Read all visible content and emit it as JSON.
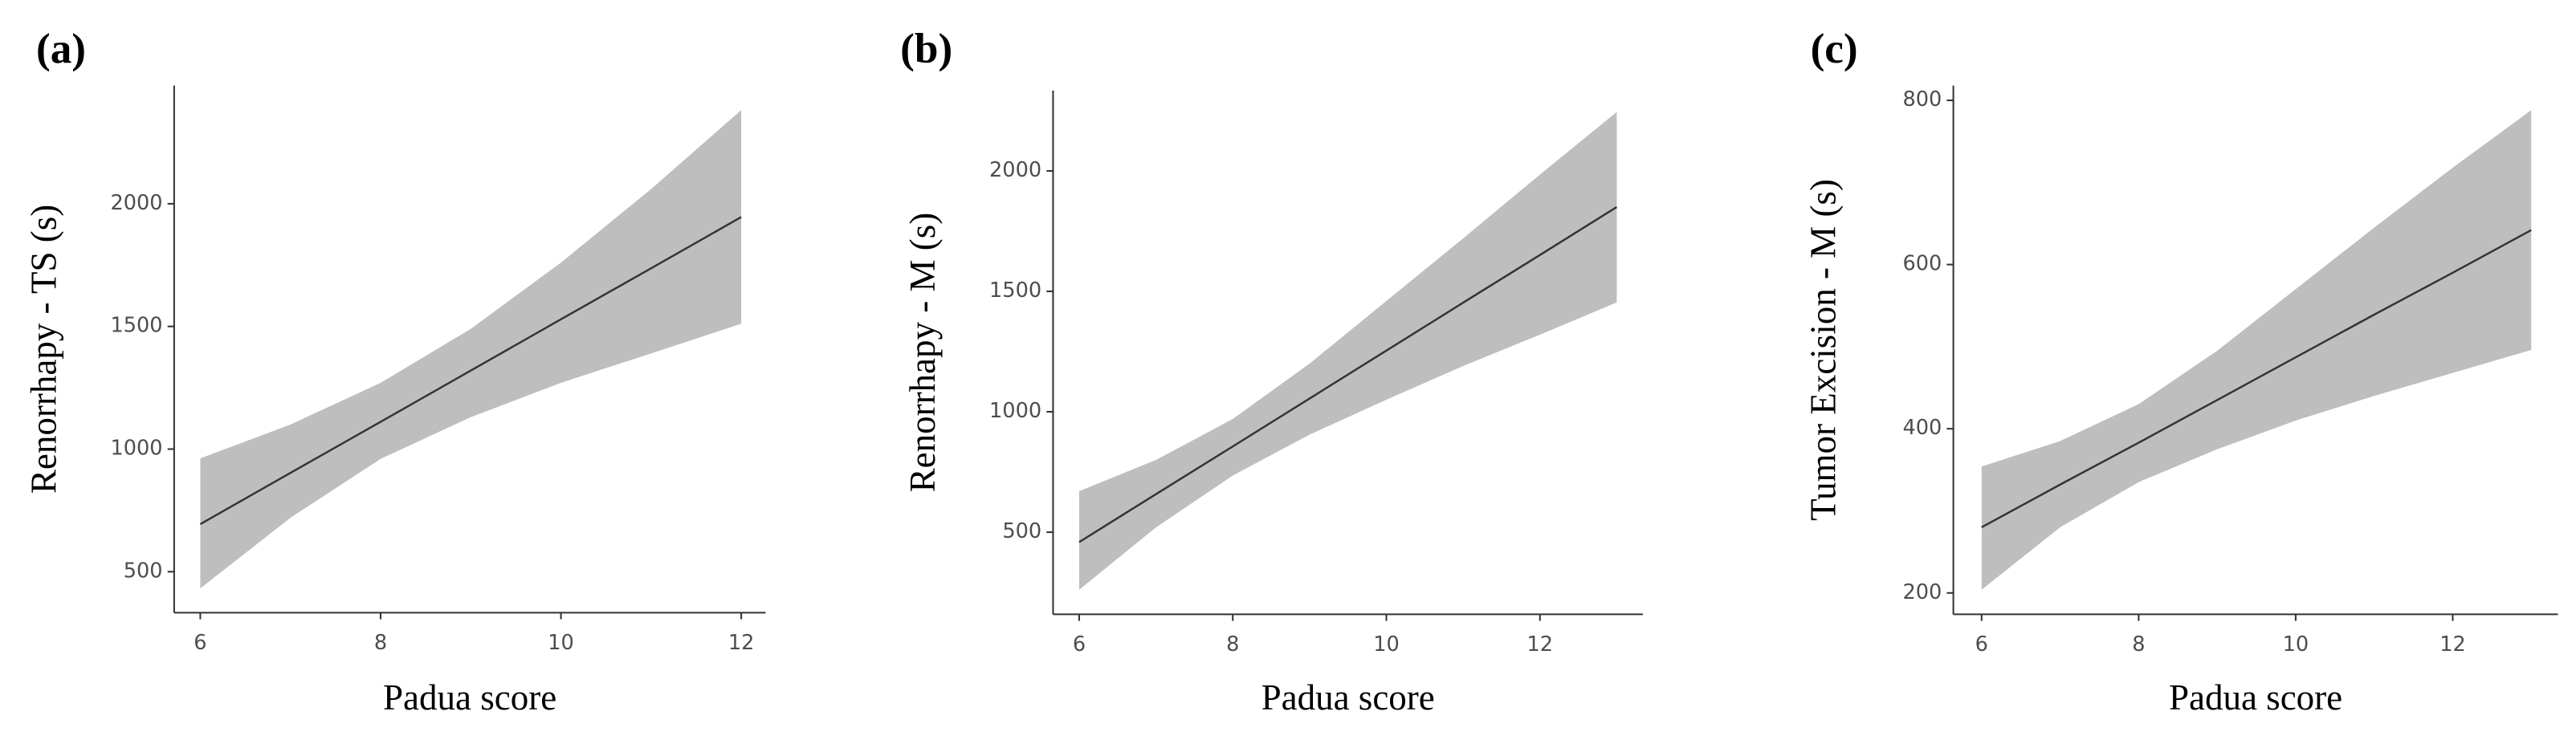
{
  "chart_data": [
    {
      "type": "line",
      "title": "(a)",
      "x_label": "Padua score",
      "y_label": "Renorrhapy - TS (s)",
      "x": [
        6,
        7,
        8,
        9,
        10,
        11,
        12
      ],
      "series": [
        {
          "color": "#333333",
          "values": [
            694,
            903,
            1111,
            1320,
            1529,
            1737,
            1946
          ]
        }
      ],
      "band": {
        "color": "#bebebe",
        "lower": [
          432,
          720,
          960,
          1130,
          1270,
          1390,
          1511
        ],
        "upper": [
          962,
          1100,
          1270,
          1490,
          1760,
          2060,
          2382
        ]
      },
      "xlim": [
        5.71,
        12.27
      ],
      "ylim": [
        333,
        2482
      ],
      "xticks": [
        6,
        8,
        10,
        12
      ],
      "yticks": [
        500,
        1000,
        1500,
        2000
      ]
    },
    {
      "type": "line",
      "title": "(b)",
      "x_label": "Padua score",
      "y_label": "Renorrhapy - M (s)",
      "x": [
        6,
        7,
        8,
        9,
        10,
        11,
        12,
        13
      ],
      "series": [
        {
          "color": "#333333",
          "values": [
            459,
            658,
            856,
            1055,
            1254,
            1453,
            1651,
            1850
          ]
        }
      ],
      "band": {
        "color": "#bebebe",
        "lower": [
          261,
          520,
          735,
          905,
          1050,
          1190,
          1320,
          1454
        ],
        "upper": [
          670,
          800,
          970,
          1200,
          1460,
          1720,
          1985,
          2245
        ]
      },
      "xlim": [
        5.66,
        13.34
      ],
      "ylim": [
        159,
        2334
      ],
      "xticks": [
        6,
        8,
        10,
        12
      ],
      "yticks": [
        500,
        1000,
        1500,
        2000
      ]
    },
    {
      "type": "line",
      "title": "(c)",
      "x_label": "Padua score",
      "y_label": "Tumor Excision - M (s)",
      "x": [
        6,
        7,
        8,
        9,
        10,
        11,
        12,
        13
      ],
      "series": [
        {
          "color": "#333333",
          "values": [
            280,
            332,
            383,
            435,
            487,
            539,
            590,
            642
          ]
        }
      ],
      "band": {
        "color": "#bebebe",
        "lower": [
          204,
          280,
          335,
          375,
          410,
          440,
          468,
          496
        ],
        "upper": [
          354,
          385,
          430,
          495,
          570,
          645,
          718,
          788
        ]
      },
      "xlim": [
        5.64,
        13.34
      ],
      "ylim": [
        174,
        818
      ],
      "xticks": [
        6,
        8,
        10,
        12
      ],
      "yticks": [
        200,
        400,
        600,
        800
      ]
    }
  ]
}
